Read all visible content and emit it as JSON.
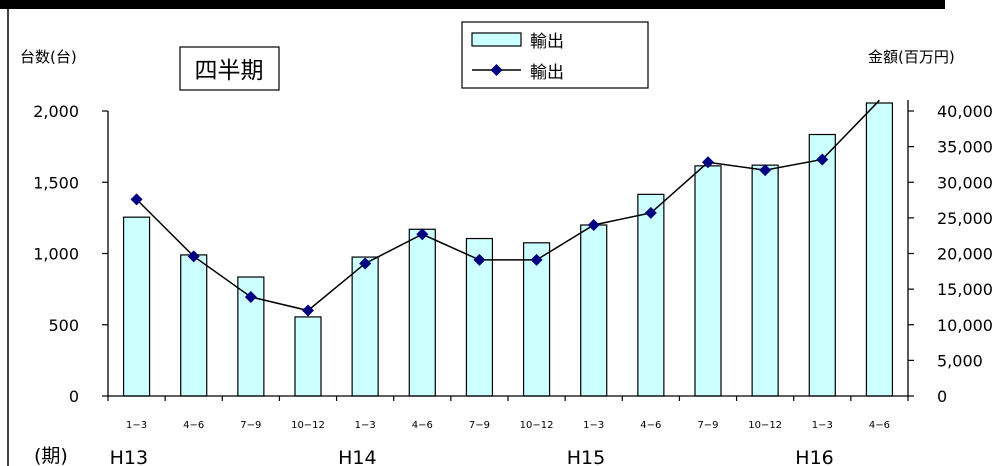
{
  "chart_data": {
    "type": "bar",
    "combo": "bar + line (dual axis)",
    "chart_label": "四半期",
    "y_left_label": "台数(台)",
    "y_right_label": "金額(百万円)",
    "x_axis_label": "(期)",
    "categories": [
      "1−3",
      "4−6",
      "7−9",
      "10−12",
      "1−3",
      "4−6",
      "7−9",
      "10−12",
      "1−3",
      "4−6",
      "7−9",
      "10−12",
      "1−3",
      "4−6"
    ],
    "years": [
      {
        "label": "H13",
        "start_index": 0
      },
      {
        "label": "H14",
        "start_index": 4
      },
      {
        "label": "H15",
        "start_index": 8
      },
      {
        "label": "H16",
        "start_index": 12
      }
    ],
    "series": [
      {
        "name": "輸出",
        "kind": "bar",
        "axis": "left",
        "values": [
          1255,
          990,
          835,
          555,
          975,
          1170,
          1105,
          1075,
          1200,
          1415,
          1615,
          1620,
          1835,
          2060
        ]
      },
      {
        "name": "輸出",
        "kind": "line",
        "axis": "right",
        "values": [
          27600,
          19600,
          13900,
          12000,
          18600,
          22700,
          19100,
          19100,
          24000,
          25700,
          32800,
          31700,
          33200,
          41500
        ]
      }
    ],
    "ylim_left": [
      0,
      2000
    ],
    "yticks_left": [
      "0",
      "500",
      "1,000",
      "1,500",
      "2,000"
    ],
    "ylim_right": [
      0,
      40000
    ],
    "yticks_right": [
      "0",
      "5,000",
      "10,000",
      "15,000",
      "20,000",
      "25,000",
      "30,000",
      "35,000",
      "40,000"
    ],
    "colors": {
      "bar_fill": "#ccffff",
      "bar_stroke": "#000000",
      "line": "#000000",
      "marker": "#000080"
    },
    "legend_position": "top-center",
    "grid": false
  }
}
